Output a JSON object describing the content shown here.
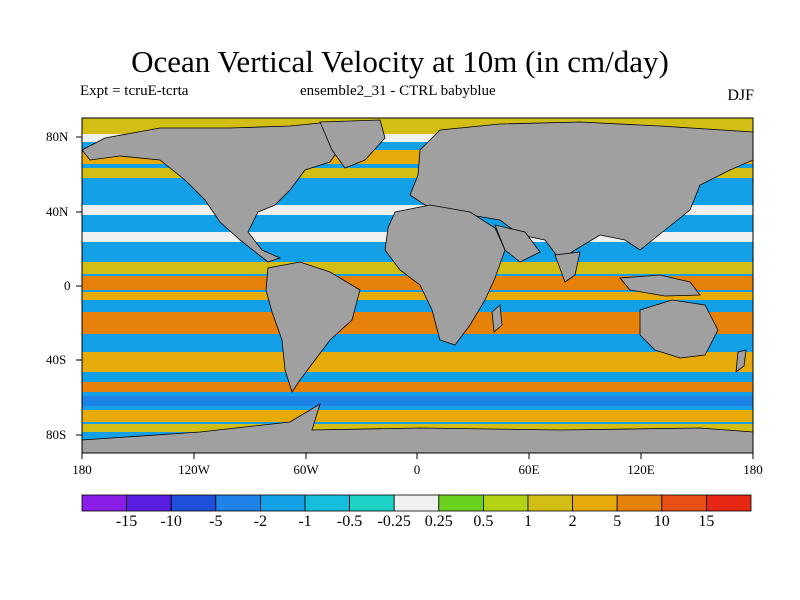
{
  "title": "Ocean Vertical Velocity at 10m (in cm/day)",
  "subtitle_left": "Expt = tcruE-tcrta",
  "subtitle_center": "ensemble2_31 - CTRL babyblue",
  "season": "DJF",
  "lat_labels": [
    "80N",
    "40N",
    "0",
    "40S",
    "80S"
  ],
  "lon_labels": [
    "180",
    "120W",
    "60W",
    "0",
    "60E",
    "120E",
    "180"
  ],
  "colorbar": {
    "labels": [
      "-15",
      "-10",
      "-5",
      "-2",
      "-1",
      "-0.5",
      "-0.25",
      "0.25",
      "0.5",
      "1",
      "2",
      "5",
      "10",
      "15"
    ],
    "colors": [
      "#8a1ee6",
      "#5a1ee0",
      "#1e50dc",
      "#1e82e6",
      "#14a0e6",
      "#14bedc",
      "#1ed2c8",
      "#f0f0f0",
      "#6ad21e",
      "#b4d214",
      "#d2be14",
      "#e6aa0a",
      "#e6820a",
      "#e65014",
      "#e62814"
    ]
  },
  "colors": {
    "land": "#a0a0a0",
    "ocean_base": "#14a0e6",
    "band_upwelling": "#e6aa0a",
    "band_strong": "#e6820a",
    "band_weak": "#d2be14",
    "band_downwelling": "#1e82e6",
    "neutral": "#f0f0f0"
  }
}
